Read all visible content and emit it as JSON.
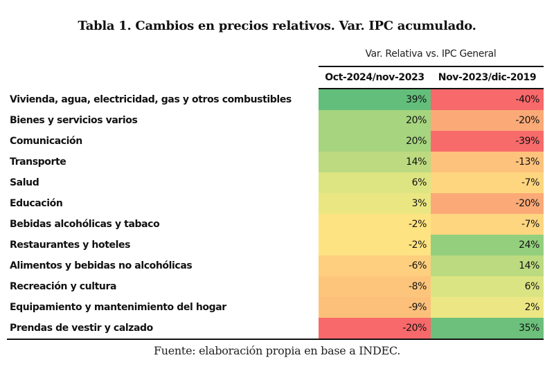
{
  "title": "Tabla 1. Cambios en precios relativos.  Var. IPC acumulado.",
  "group_header": "Var. Relativa vs. IPC General",
  "columns": [
    "Oct-2024/nov-2023",
    "Nov-2023/dic-2019"
  ],
  "rows": [
    {
      "label": "Vivienda, agua, electricidad, gas y otros combustibles",
      "c1": "39%",
      "c2": "-40%",
      "c1_color": "#63be7b",
      "c2_color": "#f8696b"
    },
    {
      "label": "Bienes y servicios varios",
      "c1": "20%",
      "c2": "-20%",
      "c1_color": "#a6d47f",
      "c2_color": "#fbaa77"
    },
    {
      "label": "Comunicación",
      "c1": "20%",
      "c2": "-39%",
      "c1_color": "#a6d47f",
      "c2_color": "#f86b6b"
    },
    {
      "label": "Transporte",
      "c1": "14%",
      "c2": "-13%",
      "c1_color": "#bdda80",
      "c2_color": "#fdc27c"
    },
    {
      "label": "Salud",
      "c1": "6%",
      "c2": "-7%",
      "c1_color": "#dde583",
      "c2_color": "#fed680"
    },
    {
      "label": "Educación",
      "c1": "3%",
      "c2": "-20%",
      "c1_color": "#eae783",
      "c2_color": "#fbaa77"
    },
    {
      "label": "Bebidas alcohólicas y tabaco",
      "c1": "-2%",
      "c2": "-7%",
      "c1_color": "#fee382",
      "c2_color": "#fed680"
    },
    {
      "label": "Restaurantes y hoteles",
      "c1": "-2%",
      "c2": "24%",
      "c1_color": "#fee382",
      "c2_color": "#94cf7e"
    },
    {
      "label": "Alimentos y bebidas no alcohólicas",
      "c1": "-6%",
      "c2": "14%",
      "c1_color": "#fdcf7e",
      "c2_color": "#bcda80"
    },
    {
      "label": "Recreación y cultura",
      "c1": "-8%",
      "c2": "6%",
      "c1_color": "#fdc57c",
      "c2_color": "#dbe483"
    },
    {
      "label": "Equipamiento y mantenimiento del hogar",
      "c1": "-9%",
      "c2": "2%",
      "c1_color": "#fdc07b",
      "c2_color": "#ece784"
    },
    {
      "label": "Prendas de vestir y calzado",
      "c1": "-20%",
      "c2": "35%",
      "c1_color": "#f8696b",
      "c2_color": "#6cc07b"
    }
  ],
  "source": "Fuente: elaboración propia en base a INDEC."
}
